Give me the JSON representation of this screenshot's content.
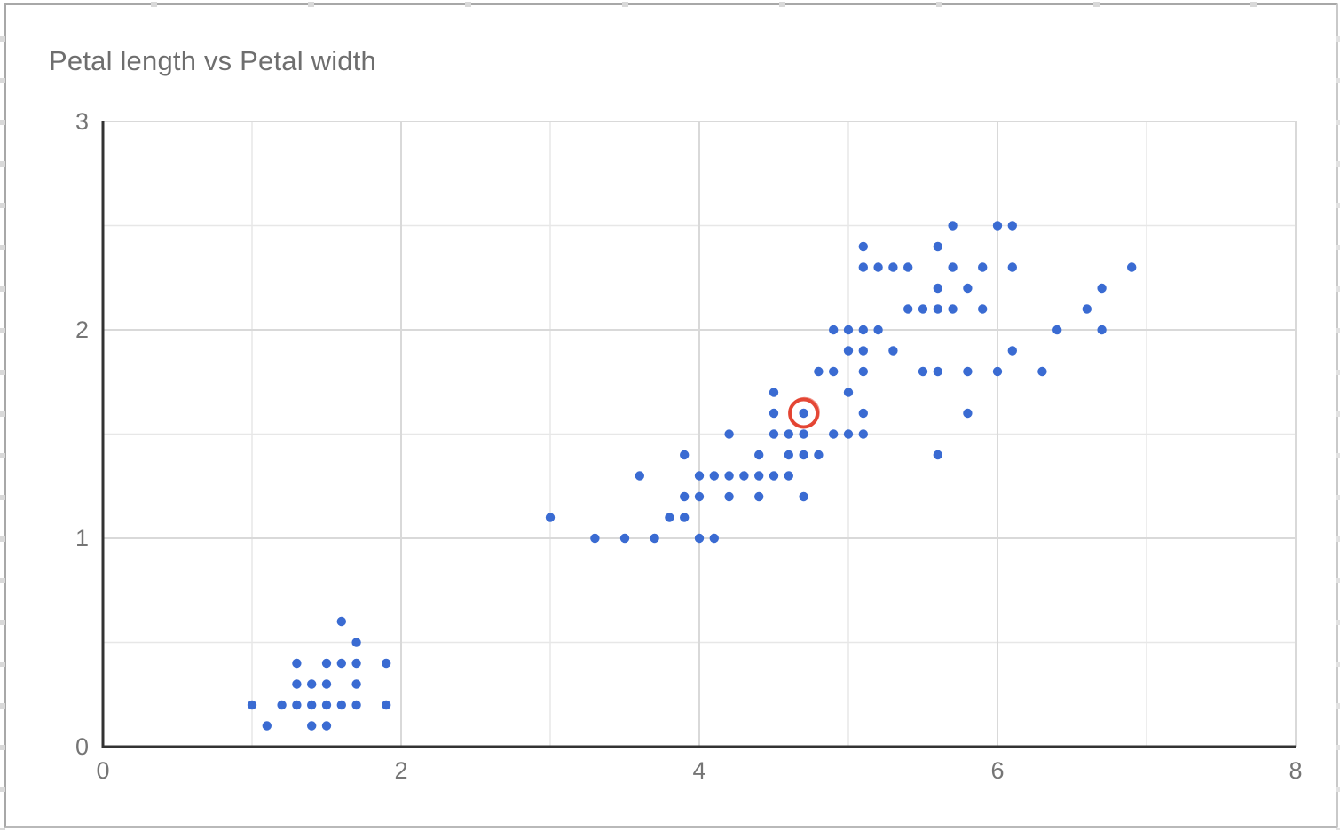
{
  "chart": {
    "title": "Petal length vs Petal width",
    "point_color": "#3a6bd2",
    "highlight_color": "#e33e2b",
    "axis_line_color": "#333333",
    "major_grid_color": "#d9d9d9",
    "minor_grid_color": "#e7e7e7",
    "tick_label_color": "#757575"
  },
  "chart_data": {
    "type": "scatter",
    "title": "Petal length vs Petal width",
    "xlabel": "",
    "ylabel": "",
    "xlim": [
      0,
      8
    ],
    "ylim": [
      0,
      3
    ],
    "x_ticks": [
      0,
      2,
      4,
      6,
      8
    ],
    "y_ticks": [
      0,
      1,
      2,
      3
    ],
    "x_minor_step": 1,
    "y_minor_step": 0.5,
    "grid": true,
    "legend_position": "none",
    "series": [
      {
        "name": "petal-length-vs-width",
        "color": "#3a6bd2",
        "points": [
          [
            1.1,
            0.1
          ],
          [
            1.4,
            0.1
          ],
          [
            1.5,
            0.1
          ],
          [
            1.0,
            0.2
          ],
          [
            1.2,
            0.2
          ],
          [
            1.3,
            0.2
          ],
          [
            1.4,
            0.2
          ],
          [
            1.5,
            0.2
          ],
          [
            1.6,
            0.2
          ],
          [
            1.7,
            0.2
          ],
          [
            1.9,
            0.2
          ],
          [
            1.3,
            0.3
          ],
          [
            1.4,
            0.3
          ],
          [
            1.5,
            0.3
          ],
          [
            1.7,
            0.3
          ],
          [
            1.3,
            0.4
          ],
          [
            1.5,
            0.4
          ],
          [
            1.6,
            0.4
          ],
          [
            1.7,
            0.4
          ],
          [
            1.9,
            0.4
          ],
          [
            1.7,
            0.5
          ],
          [
            1.6,
            0.6
          ],
          [
            3.3,
            1.0
          ],
          [
            3.5,
            1.0
          ],
          [
            3.7,
            1.0
          ],
          [
            4.0,
            1.0
          ],
          [
            4.1,
            1.0
          ],
          [
            3.0,
            1.1
          ],
          [
            3.8,
            1.1
          ],
          [
            3.9,
            1.1
          ],
          [
            3.9,
            1.2
          ],
          [
            4.0,
            1.2
          ],
          [
            4.2,
            1.2
          ],
          [
            4.4,
            1.2
          ],
          [
            4.7,
            1.2
          ],
          [
            3.6,
            1.3
          ],
          [
            4.0,
            1.3
          ],
          [
            4.1,
            1.3
          ],
          [
            4.2,
            1.3
          ],
          [
            4.3,
            1.3
          ],
          [
            4.4,
            1.3
          ],
          [
            4.5,
            1.3
          ],
          [
            4.6,
            1.3
          ],
          [
            3.9,
            1.4
          ],
          [
            4.4,
            1.4
          ],
          [
            4.6,
            1.4
          ],
          [
            4.7,
            1.4
          ],
          [
            4.8,
            1.4
          ],
          [
            5.6,
            1.4
          ],
          [
            4.2,
            1.5
          ],
          [
            4.5,
            1.5
          ],
          [
            4.6,
            1.5
          ],
          [
            4.7,
            1.5
          ],
          [
            4.9,
            1.5
          ],
          [
            5.0,
            1.5
          ],
          [
            5.1,
            1.5
          ],
          [
            4.5,
            1.6
          ],
          [
            4.7,
            1.6
          ],
          [
            5.1,
            1.6
          ],
          [
            5.8,
            1.6
          ],
          [
            4.5,
            1.7
          ],
          [
            5.0,
            1.7
          ],
          [
            4.8,
            1.8
          ],
          [
            4.9,
            1.8
          ],
          [
            5.1,
            1.8
          ],
          [
            5.5,
            1.8
          ],
          [
            5.6,
            1.8
          ],
          [
            5.8,
            1.8
          ],
          [
            6.0,
            1.8
          ],
          [
            6.3,
            1.8
          ],
          [
            5.0,
            1.9
          ],
          [
            5.1,
            1.9
          ],
          [
            5.3,
            1.9
          ],
          [
            6.1,
            1.9
          ],
          [
            4.9,
            2.0
          ],
          [
            5.0,
            2.0
          ],
          [
            5.1,
            2.0
          ],
          [
            5.2,
            2.0
          ],
          [
            6.4,
            2.0
          ],
          [
            6.7,
            2.0
          ],
          [
            5.4,
            2.1
          ],
          [
            5.5,
            2.1
          ],
          [
            5.6,
            2.1
          ],
          [
            5.7,
            2.1
          ],
          [
            5.9,
            2.1
          ],
          [
            6.6,
            2.1
          ],
          [
            5.6,
            2.2
          ],
          [
            5.8,
            2.2
          ],
          [
            6.7,
            2.2
          ],
          [
            5.1,
            2.3
          ],
          [
            5.2,
            2.3
          ],
          [
            5.3,
            2.3
          ],
          [
            5.4,
            2.3
          ],
          [
            5.7,
            2.3
          ],
          [
            5.9,
            2.3
          ],
          [
            6.1,
            2.3
          ],
          [
            6.9,
            2.3
          ],
          [
            5.1,
            2.4
          ],
          [
            5.6,
            2.4
          ],
          [
            5.7,
            2.5
          ],
          [
            6.0,
            2.5
          ],
          [
            6.1,
            2.5
          ]
        ]
      }
    ],
    "annotations": [
      {
        "type": "circle",
        "name": "highlighted-point",
        "x": 4.7,
        "y": 1.6,
        "color": "#e33e2b"
      }
    ]
  }
}
